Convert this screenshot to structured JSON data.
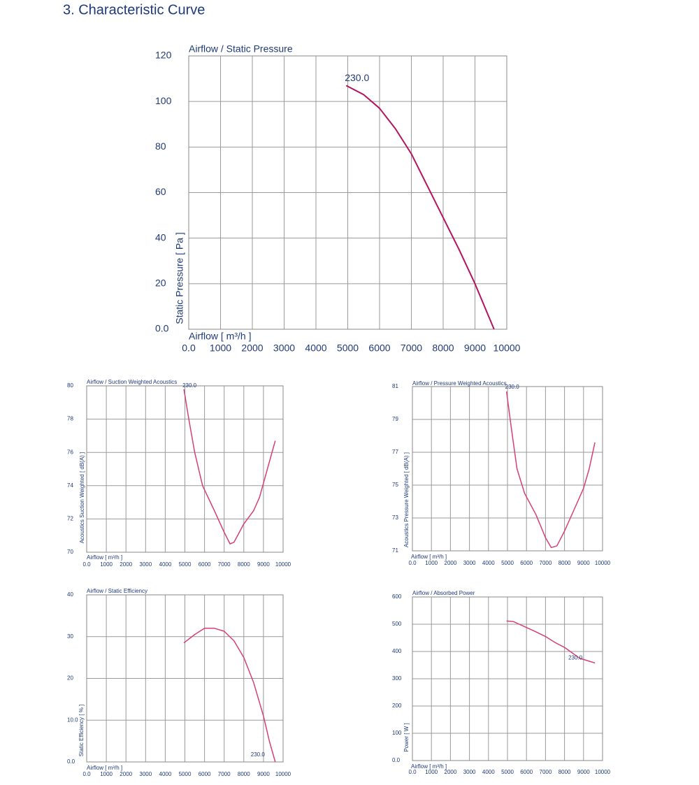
{
  "header": {
    "title": "3. Characteristic Curve"
  },
  "chart_data": [
    {
      "type": "line",
      "title": "Airflow / Static Pressure",
      "x_label": "Airflow [ m³/h ]",
      "y_label": "Static Pressure [ Pa ]",
      "xlim": [
        0,
        10000
      ],
      "ylim": [
        0,
        120
      ],
      "xticks": [
        {
          "value": 0,
          "label": "0.0"
        },
        1000,
        2000,
        3000,
        4000,
        5000,
        6000,
        7000,
        8000,
        9000,
        10000
      ],
      "yticks": [
        {
          "value": 0,
          "label": "0.0"
        },
        20,
        40,
        60,
        80,
        100,
        120
      ],
      "grid": true,
      "x": [
        4950,
        5500,
        6000,
        6500,
        7000,
        7500,
        8000,
        8500,
        9000,
        9600
      ],
      "series": [
        {
          "name": "230.0",
          "color": "#b5135e",
          "values": [
            107,
            103,
            97,
            88,
            77,
            63,
            49,
            35,
            20,
            0
          ]
        }
      ]
    },
    {
      "type": "line",
      "title": "Airflow / Suction Weighted Acoustics",
      "x_label": "Airflow [ m³/h ]",
      "y_label": "Acoustics Suction Weighted [ dB(A) ]",
      "xlim": [
        0,
        10000
      ],
      "ylim": [
        70,
        80
      ],
      "xticks": [
        {
          "value": 0,
          "label": "0.0"
        },
        1000,
        2000,
        3000,
        4000,
        5000,
        6000,
        7000,
        8000,
        9000,
        10000
      ],
      "yticks": [
        70,
        72,
        74,
        76,
        78,
        80
      ],
      "grid": true,
      "x": [
        4950,
        5200,
        5500,
        5900,
        6500,
        7000,
        7300,
        7500,
        8000,
        8500,
        8800,
        9200,
        9600
      ],
      "series": [
        {
          "name": "230.0",
          "color": "#d63f78",
          "values": [
            79.8,
            78,
            76,
            74,
            72.5,
            71.2,
            70.5,
            70.6,
            71.7,
            72.5,
            73.3,
            75,
            76.7
          ]
        }
      ]
    },
    {
      "type": "line",
      "title": "Airflow / Pressure Weighted Acoustics",
      "x_label": "Airflow [ m³/h ]",
      "y_label": "Acoustics Pressure Weighted [ dB(A) ]",
      "xlim": [
        0,
        10000
      ],
      "ylim": [
        71,
        81
      ],
      "xticks": [
        {
          "value": 0,
          "label": "0.0"
        },
        1000,
        2000,
        3000,
        4000,
        5000,
        6000,
        7000,
        8000,
        9000,
        10000
      ],
      "yticks": [
        71,
        73,
        75,
        77,
        79,
        81
      ],
      "grid": true,
      "x": [
        4950,
        5200,
        5500,
        5900,
        6500,
        7000,
        7300,
        7600,
        8000,
        8500,
        9000,
        9300,
        9600
      ],
      "series": [
        {
          "name": "230.0",
          "color": "#d63f78",
          "values": [
            80.7,
            78.5,
            76,
            74.5,
            73.2,
            71.8,
            71.2,
            71.3,
            72.2,
            73.5,
            74.8,
            76,
            77.6
          ]
        }
      ]
    },
    {
      "type": "line",
      "title": "Airflow / Static Efficiency",
      "x_label": "Airflow [ m³/h ]",
      "y_label": "Static Efficiency [ % ]",
      "xlim": [
        0,
        10000
      ],
      "ylim": [
        0,
        40
      ],
      "xticks": [
        {
          "value": 0,
          "label": "0.0"
        },
        1000,
        2000,
        3000,
        4000,
        5000,
        6000,
        7000,
        8000,
        9000,
        10000
      ],
      "yticks": [
        {
          "value": 0,
          "label": "0.0"
        },
        {
          "value": 10,
          "label": "10.0"
        },
        20,
        30,
        40
      ],
      "grid": true,
      "x": [
        4950,
        5500,
        6000,
        6500,
        7000,
        7500,
        8000,
        8500,
        9000,
        9300,
        9600
      ],
      "series": [
        {
          "name": "230.0",
          "color": "#d63f78",
          "values": [
            28.5,
            30.5,
            32,
            32,
            31.3,
            29,
            25,
            19,
            11,
            5,
            0
          ]
        }
      ]
    },
    {
      "type": "line",
      "title": "Airflow / Absorbed Power",
      "x_label": "Airflow [ m³/h ]",
      "y_label": "Power [ W ]",
      "xlim": [
        0,
        10000
      ],
      "ylim": [
        0,
        600
      ],
      "xticks": [
        {
          "value": 0,
          "label": "0.0"
        },
        1000,
        2000,
        3000,
        4000,
        5000,
        6000,
        7000,
        8000,
        9000,
        10000
      ],
      "yticks": [
        {
          "value": 0,
          "label": "0.0"
        },
        100,
        200,
        300,
        400,
        500,
        600
      ],
      "grid": true,
      "x": [
        4950,
        5300,
        6000,
        6500,
        7000,
        7500,
        8000,
        8500,
        8800,
        9600
      ],
      "series": [
        {
          "name": "230.0",
          "color": "#d63f78",
          "values": [
            512,
            510,
            488,
            472,
            455,
            433,
            415,
            390,
            375,
            358
          ]
        }
      ]
    }
  ]
}
